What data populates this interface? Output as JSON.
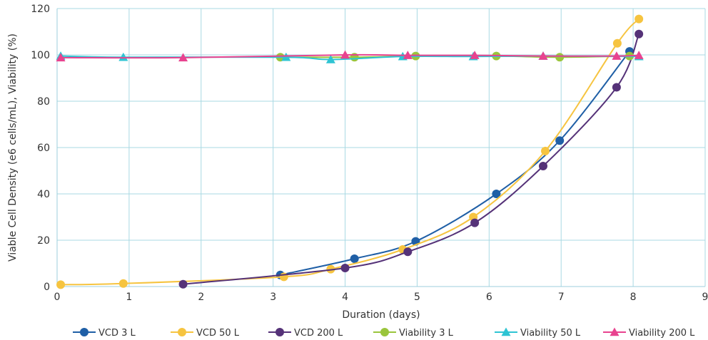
{
  "chart_data": {
    "type": "line",
    "title": "",
    "xlabel": "Duration (days)",
    "ylabel": "Viable Cell Density (e6 cells/mL), Viability (%)",
    "xlim": [
      0,
      9
    ],
    "ylim": [
      0,
      120
    ],
    "x_ticks": [
      0,
      1,
      2,
      3,
      4,
      5,
      6,
      7,
      8,
      9
    ],
    "y_ticks": [
      0,
      20,
      40,
      60,
      80,
      100,
      120
    ],
    "grid": true,
    "legend_position": "bottom",
    "series": [
      {
        "name": "VCD 3 L",
        "color": "#1f5fa6",
        "marker": "circle",
        "points": [
          [
            3.1,
            5
          ],
          [
            4.13,
            12
          ],
          [
            4.98,
            19.5
          ],
          [
            6.1,
            40
          ],
          [
            6.98,
            63
          ],
          [
            7.95,
            101.5
          ]
        ]
      },
      {
        "name": "VCD 50 L",
        "color": "#f6c440",
        "marker": "circle",
        "points": [
          [
            0.05,
            0.8
          ],
          [
            0.92,
            1.3
          ],
          [
            3.15,
            4.2
          ],
          [
            3.8,
            7.5
          ],
          [
            4.8,
            16
          ],
          [
            5.78,
            30
          ],
          [
            6.78,
            58.5
          ],
          [
            7.78,
            105
          ],
          [
            8.08,
            115.5
          ]
        ]
      },
      {
        "name": "VCD 200 L",
        "color": "#553278",
        "marker": "circle",
        "points": [
          [
            1.75,
            1
          ],
          [
            4.0,
            8
          ],
          [
            4.87,
            15
          ],
          [
            5.8,
            27.5
          ],
          [
            6.75,
            52
          ],
          [
            7.77,
            86
          ],
          [
            8.08,
            109
          ]
        ]
      },
      {
        "name": "Viability 3 L",
        "color": "#9ac53c",
        "marker": "circle",
        "points": [
          [
            3.1,
            99
          ],
          [
            4.13,
            99
          ],
          [
            4.98,
            99.5
          ],
          [
            6.1,
            99.5
          ],
          [
            6.98,
            99
          ],
          [
            7.95,
            99.5
          ]
        ]
      },
      {
        "name": "Viability 50 L",
        "color": "#2ec4d3",
        "marker": "triangle",
        "points": [
          [
            0.05,
            99.5
          ],
          [
            0.92,
            99
          ],
          [
            3.18,
            99
          ],
          [
            3.8,
            98
          ],
          [
            4.8,
            99.3
          ],
          [
            5.78,
            99.3
          ],
          [
            6.75,
            99.5
          ],
          [
            8.08,
            99.3
          ]
        ]
      },
      {
        "name": "Viability 200 L",
        "color": "#e8438f",
        "marker": "triangle",
        "points": [
          [
            0.05,
            98.8
          ],
          [
            1.75,
            98.8
          ],
          [
            4.0,
            100
          ],
          [
            4.87,
            99.8
          ],
          [
            5.8,
            99.8
          ],
          [
            6.75,
            99.5
          ],
          [
            7.77,
            99.5
          ],
          [
            8.08,
            99.8
          ]
        ]
      }
    ]
  }
}
